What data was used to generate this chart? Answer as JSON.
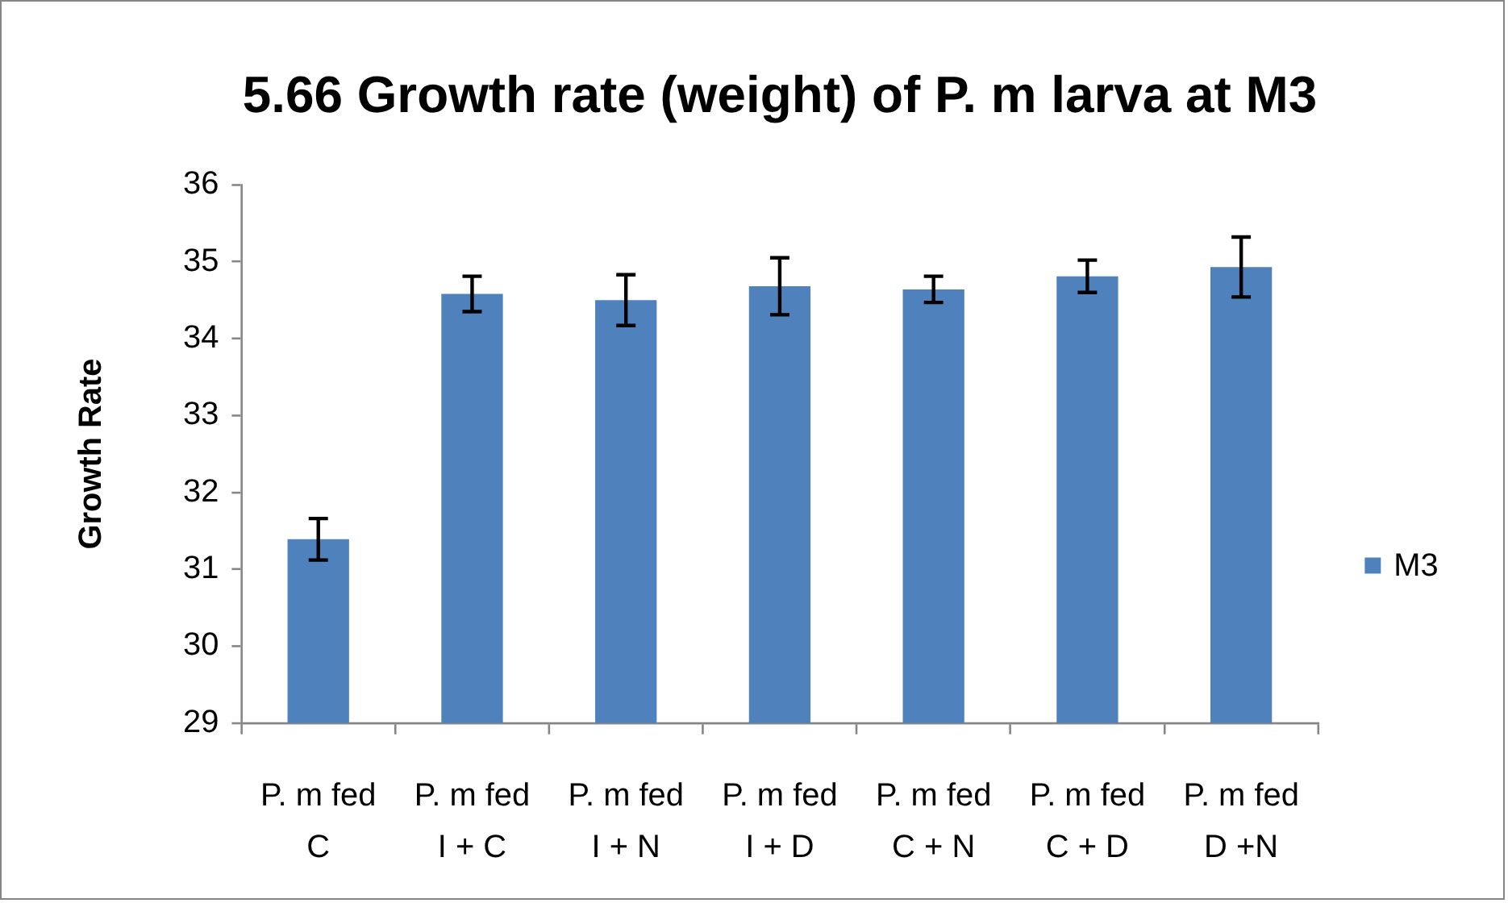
{
  "chart_data": {
    "type": "bar",
    "title": "5.66 Growth rate (weight) of P. m larva at M3",
    "ylabel": "Growth Rate",
    "categories": [
      "P. m fed C",
      "P. m fed I + C",
      "P. m fed I + N",
      "P. m fed I + D",
      "P. m fed C + N",
      "P. m fed C + D",
      "P. m fed D +N"
    ],
    "series": [
      {
        "name": "M3",
        "color": "#4f81bd",
        "values": [
          31.39,
          34.58,
          34.5,
          34.68,
          34.64,
          34.81,
          34.93
        ],
        "errors": [
          0.27,
          0.23,
          0.33,
          0.37,
          0.17,
          0.21,
          0.39
        ]
      }
    ],
    "ylim": [
      29,
      36
    ],
    "yticks": [
      29,
      30,
      31,
      32,
      33,
      34,
      35,
      36
    ],
    "legend": "right"
  }
}
